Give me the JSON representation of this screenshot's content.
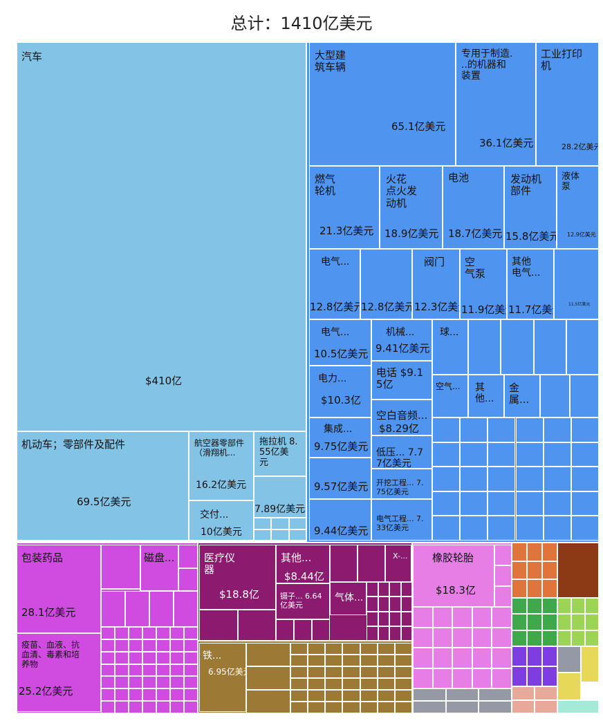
{
  "chart_data": {
    "type": "treemap",
    "title": "总计：1410亿美元",
    "colors": {
      "vehicles": "#82c3e6",
      "machines": "#4f94ee",
      "pharma": "#d04be0",
      "medical": "#8c1a6e",
      "tires": "#e67ee6",
      "metals": "#9c7a35",
      "gray": "#9599a6",
      "orange": "#e0743d",
      "brown": "#8c3a16",
      "green": "#3ea84b",
      "lime": "#9cd455",
      "purple": "#7e3de0",
      "yellow": "#e8d85a",
      "pink": "#e8a89a",
      "mint": "#a5ead8"
    },
    "items": [
      {
        "label": "汽车",
        "value": "$410亿"
      },
      {
        "label": "机动车；零部件及配件",
        "value": "69.5亿美元"
      },
      {
        "label": "航空器零部件\n（滑翔机...",
        "value": "16.2亿美元"
      },
      {
        "label": "拖拉机 8.\n55亿美\n元",
        "value": ""
      },
      {
        "label": "交付...",
        "value": "10亿美元"
      },
      {
        "label": "",
        "value": "7.89亿美元"
      },
      {
        "label": "大型建\n筑车辆",
        "value": "65.1亿美元"
      },
      {
        "label": "专用于制造.\n..的机器和\n装置",
        "value": "36.1亿美元"
      },
      {
        "label": "工业打印\n机",
        "value": "28.2亿美元"
      },
      {
        "label": "燃气\n轮机",
        "value": "21.3亿美元"
      },
      {
        "label": "火花\n点火发\n动机",
        "value": "18.9亿美元"
      },
      {
        "label": "电池",
        "value": "18.7亿美元"
      },
      {
        "label": "发动机\n部件",
        "value": "15.8亿美元"
      },
      {
        "label": "液体\n泵",
        "value": "12.9亿美元"
      },
      {
        "label": "电气...",
        "value": "12.8亿美元"
      },
      {
        "label": "",
        "value": "12.8亿美元"
      },
      {
        "label": "阀门",
        "value": "12.3亿美元"
      },
      {
        "label": "空\n气泵",
        "value": "11.9亿美元"
      },
      {
        "label": "其他\n电气...",
        "value": "11.7亿美元"
      },
      {
        "label": "",
        "value": "11.5亿美元"
      },
      {
        "label": "电气...",
        "value": "10.5亿美元"
      },
      {
        "label": "机械...",
        "value": "9.41亿美元"
      },
      {
        "label": "球...",
        "value": ""
      },
      {
        "label": "电力...",
        "value": "$10.3亿"
      },
      {
        "label": "电话 $9.1\n5亿",
        "value": ""
      },
      {
        "label": "空气...",
        "value": ""
      },
      {
        "label": "其他...",
        "value": ""
      },
      {
        "label": "金属...",
        "value": ""
      },
      {
        "label": "集成...",
        "value": "9.75亿美元"
      },
      {
        "label": "空白音频...",
        "value": "$8.29亿"
      },
      {
        "label": "低压... 7.7\n7亿美元",
        "value": ""
      },
      {
        "label": "",
        "value": "9.57亿美元"
      },
      {
        "label": "开挖工程... 7.\n75亿美元",
        "value": ""
      },
      {
        "label": "",
        "value": "9.44亿美元"
      },
      {
        "label": "电气工程... 7.\n33亿美元",
        "value": ""
      },
      {
        "label": "包装药品",
        "value": "28.1亿美元"
      },
      {
        "label": "磁盘...",
        "value": ""
      },
      {
        "label": "疫苗、血液、抗\n血清、毒素和培\n养物",
        "value": "25.2亿美元"
      },
      {
        "label": "医疗仪\n器",
        "value": "$18.8亿"
      },
      {
        "label": "其他...",
        "value": "$8.44亿"
      },
      {
        "label": "X-...",
        "value": ""
      },
      {
        "label": "镊子... 6.64\n亿美元",
        "value": ""
      },
      {
        "label": "气体...",
        "value": ""
      },
      {
        "label": "铁...",
        "value": "6.95亿美元"
      },
      {
        "label": "橡胶轮胎",
        "value": "$18.3亿"
      }
    ]
  }
}
